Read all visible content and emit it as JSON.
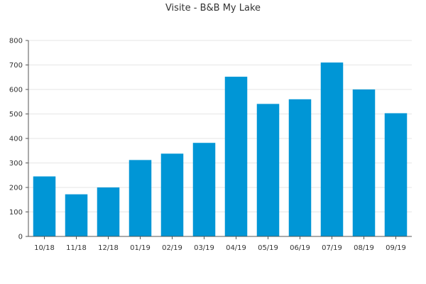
{
  "chart_data": {
    "type": "bar",
    "title": "Visite - B&B My Lake",
    "xlabel": "",
    "ylabel": "",
    "categories": [
      "10/18",
      "11/18",
      "12/18",
      "01/19",
      "02/19",
      "03/19",
      "04/19",
      "05/19",
      "06/19",
      "07/19",
      "08/19",
      "09/19"
    ],
    "values": [
      245,
      172,
      200,
      312,
      338,
      382,
      652,
      541,
      560,
      710,
      600,
      503
    ],
    "ylim": [
      0,
      800
    ],
    "yticks": [
      0,
      100,
      200,
      300,
      400,
      500,
      600,
      700,
      800
    ],
    "grid": true,
    "legend": "none",
    "colors": {
      "bar": "#0096d6",
      "grid": "#e6e6e6",
      "axis": "#555555",
      "text": "#333333"
    }
  }
}
